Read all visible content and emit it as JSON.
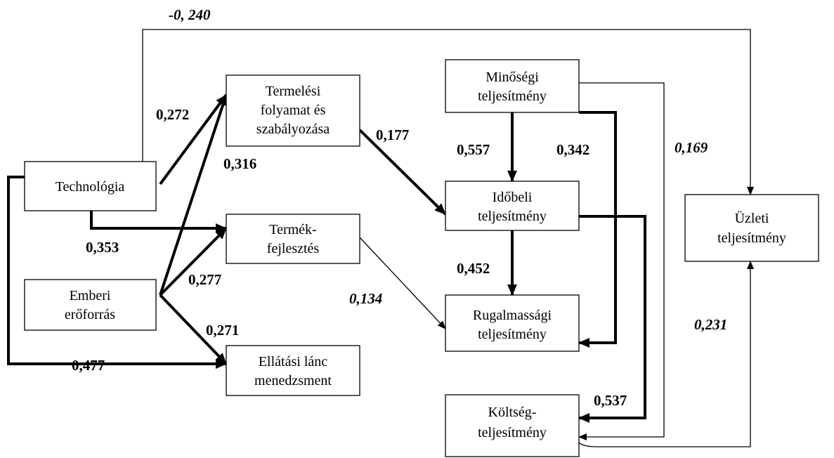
{
  "nodes": [
    {
      "lines": [
        "Technológia"
      ]
    },
    {
      "lines": [
        "Emberi",
        "erőforrás"
      ]
    },
    {
      "lines": [
        "Termelési",
        "folyamat és",
        "szabályozása"
      ]
    },
    {
      "lines": [
        "Termék-",
        "fejlesztés"
      ]
    },
    {
      "lines": [
        "Ellátási lánc",
        "menedzsment"
      ]
    },
    {
      "lines": [
        "Minőségi",
        "teljesítmény"
      ]
    },
    {
      "lines": [
        "Időbeli",
        "teljesítmény"
      ]
    },
    {
      "lines": [
        "Rugalmassági",
        "teljesítmény"
      ]
    },
    {
      "lines": [
        "Költség-",
        "teljesítmény"
      ]
    },
    {
      "lines": [
        "Üzleti",
        "teljesítmény"
      ]
    }
  ],
  "edges": [
    {
      "label": "-0, 240"
    },
    {
      "label": "0,272"
    },
    {
      "label": "0,316"
    },
    {
      "label": "0,177"
    },
    {
      "label": "0,557"
    },
    {
      "label": "0,342"
    },
    {
      "label": "0,169"
    },
    {
      "label": "0,353"
    },
    {
      "label": "0,277"
    },
    {
      "label": "0,134"
    },
    {
      "label": "0,452"
    },
    {
      "label": "0,271"
    },
    {
      "label": "0,477"
    },
    {
      "label": "0,537"
    },
    {
      "label": "0,231"
    }
  ]
}
